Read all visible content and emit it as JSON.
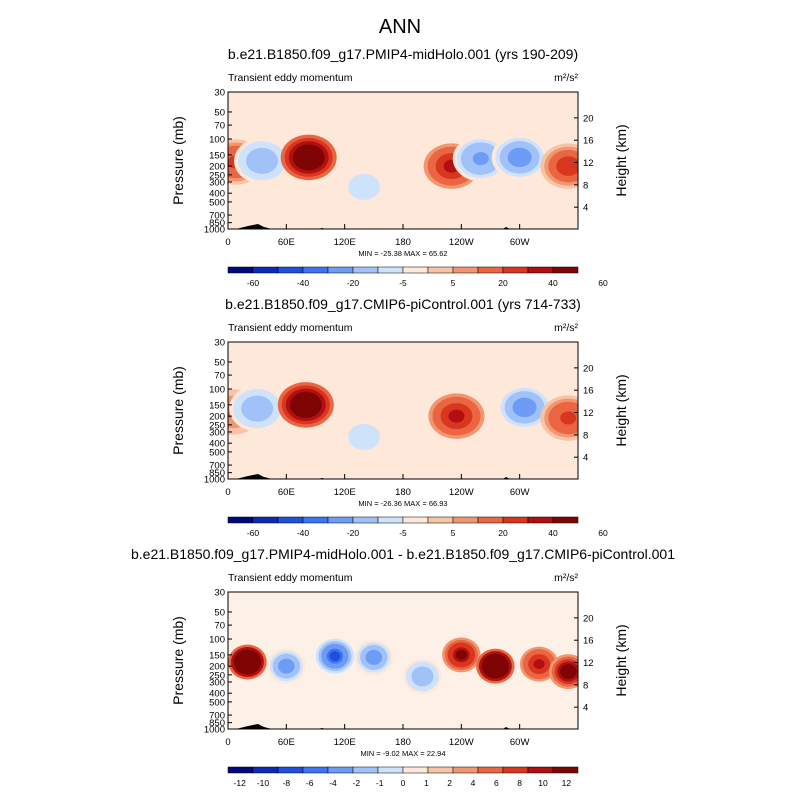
{
  "figure_title": "ANN",
  "chart_data": [
    {
      "type": "heatmap",
      "title": "b.e21.B1850.f09_g17.PMIP4-midHolo.001 (yrs 190-209)",
      "subtitle_left": "Transient eddy momentum",
      "units": "m²/s²",
      "ylabel": "Pressure (mb)",
      "ylabel_right": "Height (km)",
      "x_tick_labels": [
        "0",
        "60E",
        "120E",
        "180",
        "120W",
        "60W"
      ],
      "y_tick_labels": [
        "30",
        "50",
        "70",
        "100",
        "150",
        "200",
        "250",
        "300",
        "400",
        "500",
        "700",
        "850",
        "1000"
      ],
      "y_right_tick_labels": [
        "20",
        "16",
        "12",
        "8",
        "4"
      ],
      "stats": "MIN = -25.38   MAX = 65.62",
      "colorbar_labels": [
        "-60",
        "-40",
        "-20",
        "-5",
        "5",
        "20",
        "40",
        "60"
      ],
      "features": [
        {
          "lon": 8,
          "p": 180,
          "value": 20
        },
        {
          "lon": 35,
          "p": 175,
          "value": -18
        },
        {
          "lon": 83,
          "p": 160,
          "value": 60
        },
        {
          "lon": 140,
          "p": 340,
          "value": -8
        },
        {
          "lon": 230,
          "p": 200,
          "value": 35
        },
        {
          "lon": 260,
          "p": 165,
          "value": -22
        },
        {
          "lon": 300,
          "p": 160,
          "value": -25
        },
        {
          "lon": 350,
          "p": 200,
          "value": 25
        }
      ]
    },
    {
      "type": "heatmap",
      "title": "b.e21.B1850.f09_g17.CMIP6-piControl.001 (yrs 714-733)",
      "subtitle_left": "Transient eddy momentum",
      "units": "m²/s²",
      "ylabel": "Pressure (mb)",
      "ylabel_right": "Height (km)",
      "x_tick_labels": [
        "0",
        "60E",
        "120E",
        "180",
        "120W",
        "60W"
      ],
      "y_tick_labels": [
        "30",
        "50",
        "70",
        "100",
        "150",
        "200",
        "250",
        "300",
        "400",
        "500",
        "700",
        "850",
        "1000"
      ],
      "y_right_tick_labels": [
        "20",
        "16",
        "12",
        "8",
        "4"
      ],
      "stats": "MIN = -26.36   MAX = 66.93",
      "colorbar_labels": [
        "-60",
        "-40",
        "-20",
        "-5",
        "5",
        "20",
        "40",
        "60"
      ],
      "features": [
        {
          "lon": 5,
          "p": 180,
          "value": 10
        },
        {
          "lon": 30,
          "p": 165,
          "value": -20
        },
        {
          "lon": 80,
          "p": 150,
          "value": 62
        },
        {
          "lon": 140,
          "p": 340,
          "value": -8
        },
        {
          "lon": 235,
          "p": 200,
          "value": 30
        },
        {
          "lon": 305,
          "p": 160,
          "value": -26
        },
        {
          "lon": 350,
          "p": 210,
          "value": 22
        }
      ]
    },
    {
      "type": "heatmap",
      "title": "b.e21.B1850.f09_g17.PMIP4-midHolo.001 - b.e21.B1850.f09_g17.CMIP6-piControl.001",
      "subtitle_left": "Transient eddy momentum",
      "units": "m²/s²",
      "ylabel": "Pressure (mb)",
      "ylabel_right": "Height (km)",
      "x_tick_labels": [
        "0",
        "60E",
        "120E",
        "180",
        "120W",
        "60W"
      ],
      "y_tick_labels": [
        "30",
        "50",
        "70",
        "100",
        "150",
        "200",
        "250",
        "300",
        "400",
        "500",
        "700",
        "850",
        "1000"
      ],
      "y_right_tick_labels": [
        "20",
        "16",
        "12",
        "8",
        "4"
      ],
      "stats": "MIN = -9.02   MAX = 22.94",
      "colorbar_labels": [
        "-12",
        "-10",
        "-8",
        "-6",
        "-4",
        "-2",
        "-1",
        "0",
        "1",
        "2",
        "4",
        "6",
        "8",
        "10",
        "12"
      ],
      "features": [
        {
          "lon": 20,
          "p": 180,
          "value": 18
        },
        {
          "lon": 60,
          "p": 200,
          "value": -5
        },
        {
          "lon": 110,
          "p": 155,
          "value": -9
        },
        {
          "lon": 150,
          "p": 160,
          "value": -6
        },
        {
          "lon": 200,
          "p": 260,
          "value": -4
        },
        {
          "lon": 240,
          "p": 150,
          "value": 8
        },
        {
          "lon": 275,
          "p": 200,
          "value": 22
        },
        {
          "lon": 320,
          "p": 190,
          "value": 6
        },
        {
          "lon": 350,
          "p": 230,
          "value": 10
        }
      ]
    }
  ],
  "colors": {
    "palette": [
      "#020a7b",
      "#0c2ab8",
      "#1e50e0",
      "#3e74f4",
      "#6c9cf6",
      "#a0c2f8",
      "#cfe2fb",
      "#fde8da",
      "#f8c4a6",
      "#f29670",
      "#ea6642",
      "#d8361f",
      "#b21010",
      "#7f0404"
    ]
  }
}
